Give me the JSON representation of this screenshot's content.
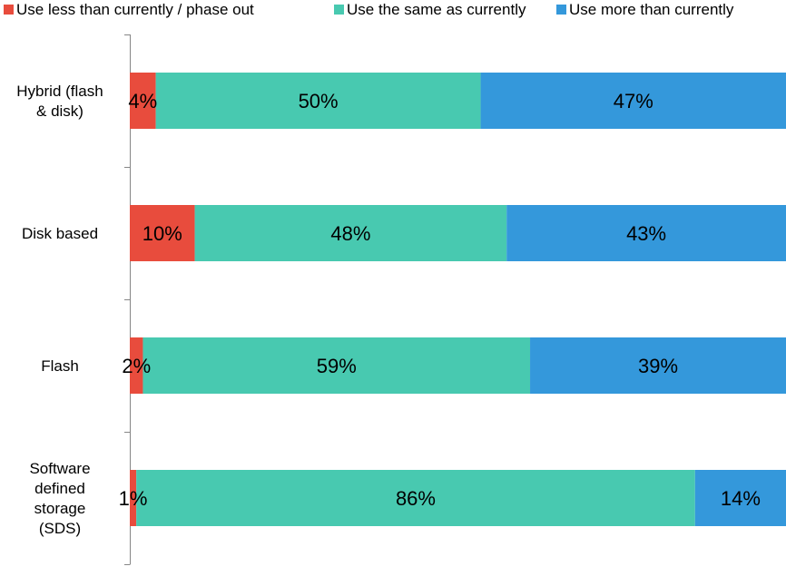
{
  "chart_data": {
    "type": "bar",
    "orientation": "horizontal",
    "stacked": true,
    "percent_stacked": true,
    "categories": [
      "Hybrid (flash & disk)",
      "Disk based",
      "Flash",
      "Software defined storage (SDS)"
    ],
    "category_lines": [
      [
        "Hybrid (flash",
        "& disk)"
      ],
      [
        "Disk based"
      ],
      [
        "Flash"
      ],
      [
        "Software",
        "defined",
        "storage",
        "(SDS)"
      ]
    ],
    "series": [
      {
        "name": "Use less than currently / phase out",
        "color": "#E84C3D",
        "values": [
          4,
          10,
          2,
          1
        ],
        "labels": [
          "4%",
          "10%",
          "2%",
          "1%"
        ]
      },
      {
        "name": "Use the same as currently",
        "color": "#48C9B0",
        "values": [
          50,
          48,
          59,
          86
        ],
        "labels": [
          "50%",
          "48%",
          "59%",
          "86%"
        ]
      },
      {
        "name": "Use more than currently",
        "color": "#3498DB",
        "values": [
          47,
          43,
          39,
          14
        ],
        "labels": [
          "47%",
          "43%",
          "39%",
          "14%"
        ]
      }
    ],
    "legend_position": "top",
    "grid": false,
    "title": "",
    "xlabel": "",
    "ylabel": ""
  }
}
